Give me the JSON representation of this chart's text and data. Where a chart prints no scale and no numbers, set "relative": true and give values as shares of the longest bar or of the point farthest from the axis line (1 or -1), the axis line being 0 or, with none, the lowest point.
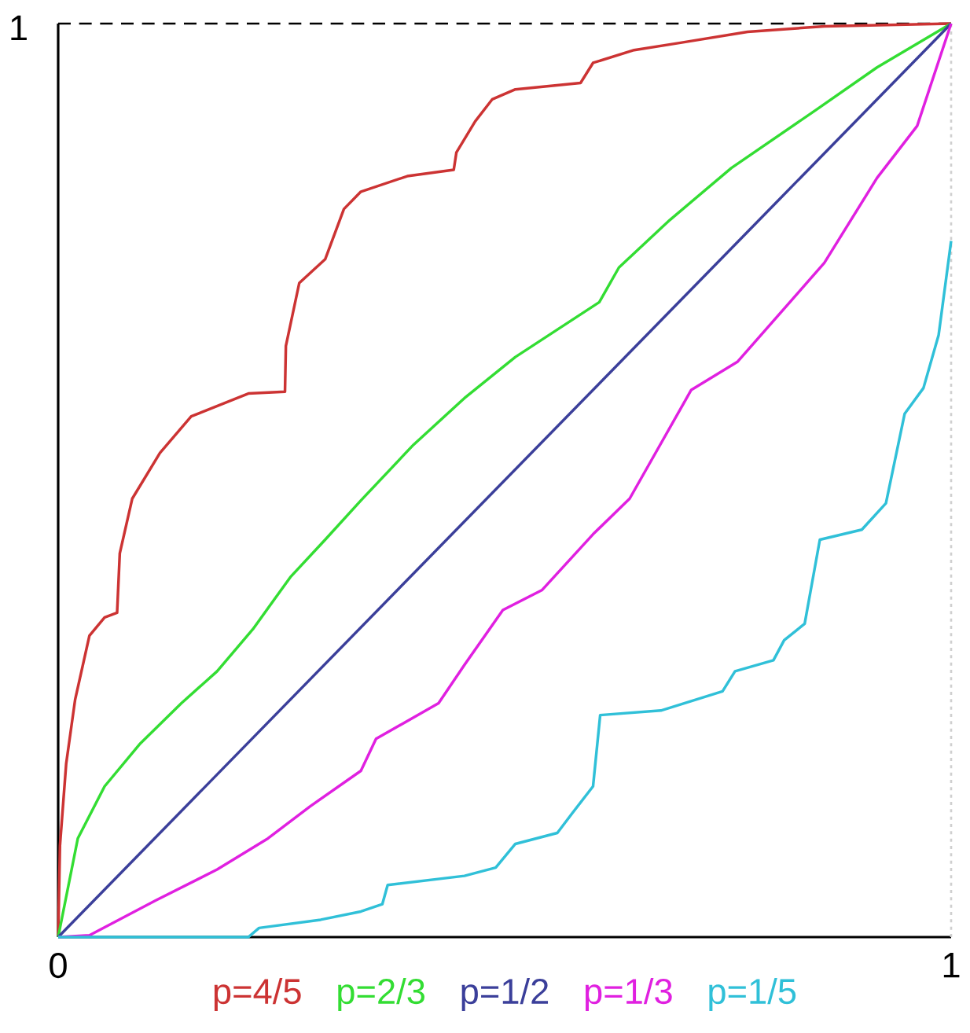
{
  "chart_data": {
    "type": "line",
    "xlim": [
      0,
      1
    ],
    "relative": true,
    "xticks": [
      0,
      1
    ],
    "annotations": [
      "1"
    ],
    "legend": "bottom",
    "grid": false,
    "marker": "none",
    "line_style": "solid",
    "ref_lines": [
      {
        "axis": "y",
        "value": 1,
        "label": null,
        "color": "#000000",
        "line_style": "dashed"
      },
      {
        "axis": "x",
        "value": 1,
        "label": null,
        "color": "#cfcfcf",
        "line_style": "dotted"
      }
    ],
    "series": [
      {
        "name": "p=4/5",
        "color": "#cc3333",
        "x": [
          0,
          0.002,
          0.009,
          0.019,
          0.035,
          0.052,
          0.066,
          0.069,
          0.083,
          0.114,
          0.149,
          0.213,
          0.254,
          0.255,
          0.27,
          0.299,
          0.32,
          0.339,
          0.391,
          0.443,
          0.446,
          0.467,
          0.486,
          0.512,
          0.585,
          0.599,
          0.645,
          0.697,
          0.772,
          0.858,
          1
        ],
        "values": [
          0,
          0.1,
          0.19,
          0.26,
          0.33,
          0.35,
          0.355,
          0.42,
          0.48,
          0.53,
          0.57,
          0.595,
          0.597,
          0.647,
          0.716,
          0.742,
          0.797,
          0.816,
          0.833,
          0.84,
          0.859,
          0.893,
          0.917,
          0.928,
          0.935,
          0.957,
          0.971,
          0.979,
          0.991,
          0.997,
          1
        ]
      },
      {
        "name": "p=2/3",
        "color": "#33dd33",
        "x": [
          0,
          0.022,
          0.052,
          0.092,
          0.138,
          0.178,
          0.218,
          0.26,
          0.299,
          0.339,
          0.398,
          0.455,
          0.512,
          0.606,
          0.628,
          0.685,
          0.754,
          0.848,
          0.917,
          1
        ],
        "values": [
          0,
          0.108,
          0.165,
          0.212,
          0.256,
          0.291,
          0.337,
          0.394,
          0.435,
          0.478,
          0.539,
          0.59,
          0.635,
          0.695,
          0.733,
          0.785,
          0.842,
          0.905,
          0.952,
          1
        ]
      },
      {
        "name": "p=1/2",
        "color": "#3b3f9a",
        "x": [
          0,
          1
        ],
        "values": [
          0,
          1
        ]
      },
      {
        "name": "p=1/3",
        "color": "#e020e0",
        "x": [
          0,
          0.035,
          0.109,
          0.178,
          0.235,
          0.282,
          0.339,
          0.356,
          0.426,
          0.455,
          0.498,
          0.542,
          0.599,
          0.64,
          0.709,
          0.761,
          0.858,
          0.917,
          0.962,
          1
        ],
        "values": [
          0,
          0.002,
          0.04,
          0.074,
          0.108,
          0.143,
          0.182,
          0.217,
          0.256,
          0.298,
          0.358,
          0.38,
          0.441,
          0.48,
          0.599,
          0.63,
          0.738,
          0.831,
          0.888,
          1
        ]
      },
      {
        "name": "p=1/5",
        "color": "#30c0d8",
        "x": [
          0,
          0.213,
          0.225,
          0.294,
          0.339,
          0.363,
          0.369,
          0.455,
          0.49,
          0.512,
          0.559,
          0.576,
          0.599,
          0.607,
          0.675,
          0.744,
          0.758,
          0.801,
          0.813,
          0.836,
          0.853,
          0.9,
          0.927,
          0.948,
          0.969,
          0.986,
          1
        ],
        "values": [
          0,
          0,
          0.01,
          0.019,
          0.028,
          0.036,
          0.057,
          0.067,
          0.076,
          0.102,
          0.114,
          0.136,
          0.165,
          0.243,
          0.248,
          0.269,
          0.291,
          0.303,
          0.325,
          0.343,
          0.435,
          0.446,
          0.475,
          0.573,
          0.601,
          0.659,
          0.762
        ]
      }
    ]
  }
}
